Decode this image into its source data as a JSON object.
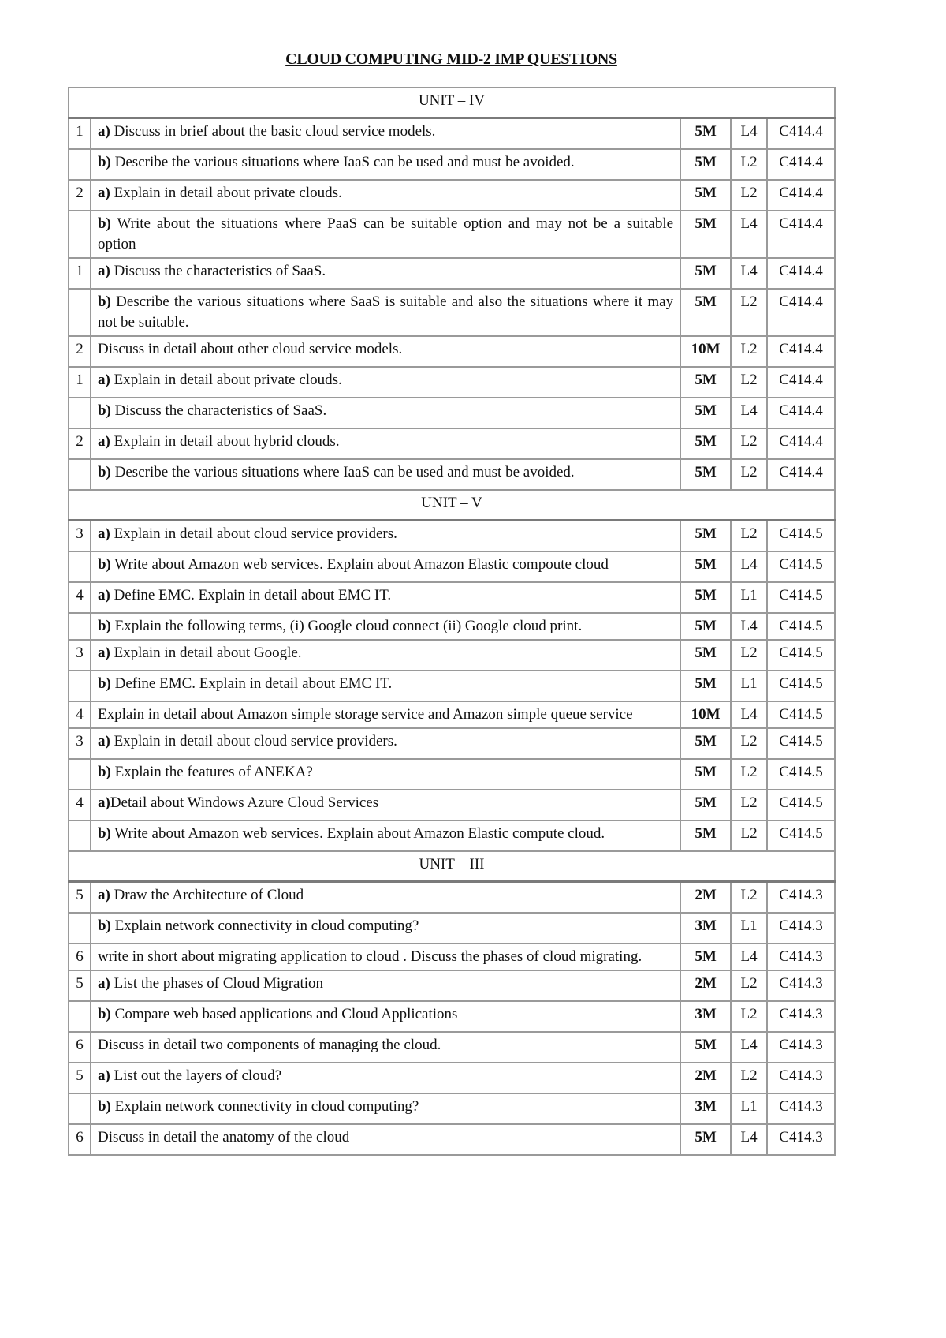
{
  "title": "CLOUD COMPUTING MID-2 IMP QUESTIONS",
  "sections": [
    {
      "unit": "UNIT – IV",
      "rows": [
        {
          "num": "1",
          "prefix": "a)",
          "text": " Discuss in brief about the basic cloud service models.",
          "marks": "5M",
          "level": "L4",
          "co": "C414.4"
        },
        {
          "num": "",
          "prefix": "b)",
          "text": " Describe the various situations where IaaS can be used and must be avoided.",
          "marks": "5M",
          "level": "L2",
          "co": "C414.4"
        },
        {
          "num": "2",
          "prefix": "a)",
          "text": " Explain in detail about private clouds.",
          "marks": "5M",
          "level": "L2",
          "co": "C414.4"
        },
        {
          "num": "",
          "prefix": "b)",
          "text": " Write about the situations where PaaS can be suitable option and may not be a suitable option",
          "marks": "5M",
          "level": "L4",
          "co": "C414.4"
        },
        {
          "num": "1",
          "prefix": "a)",
          "text": " Discuss the characteristics of SaaS.",
          "marks": "5M",
          "level": "L4",
          "co": "C414.4"
        },
        {
          "num": "",
          "prefix": "b)",
          "text": " Describe the various situations where SaaS is suitable and also the situations where it may not be suitable.",
          "marks": "5M",
          "level": "L2",
          "co": "C414.4"
        },
        {
          "num": "2",
          "prefix": "",
          "text": "Discuss in detail about other cloud service models.",
          "marks": "10M",
          "level": "L2",
          "co": "C414.4"
        },
        {
          "num": "1",
          "prefix": "a)",
          "text": " Explain in detail about private clouds.",
          "marks": "5M",
          "level": "L2",
          "co": "C414.4"
        },
        {
          "num": "",
          "prefix": "b)",
          "text": " Discuss the characteristics of SaaS.",
          "marks": "5M",
          "level": "L4",
          "co": "C414.4"
        },
        {
          "num": "2",
          "prefix": "a)",
          "text": " Explain in detail about hybrid clouds.",
          "marks": "5M",
          "level": "L2",
          "co": "C414.4"
        },
        {
          "num": "",
          "prefix": "b)",
          "text": " Describe the various situations where IaaS can be used and must be avoided.",
          "marks": "5M",
          "level": "L2",
          "co": "C414.4"
        }
      ]
    },
    {
      "unit": "UNIT – V",
      "rows": [
        {
          "num": "3",
          "prefix": "a)",
          "text": " Explain in detail about cloud service providers.",
          "marks": "5M",
          "level": "L2",
          "co": "C414.5"
        },
        {
          "num": "",
          "prefix": "b)",
          "text": " Write about Amazon web services. Explain about Amazon Elastic compoute cloud",
          "marks": "5M",
          "level": "L4",
          "co": "C414.5"
        },
        {
          "num": "4",
          "prefix": "a)",
          "text": " Define EMC. Explain in detail about EMC IT.",
          "marks": "5M",
          "level": "L1",
          "co": "C414.5"
        },
        {
          "num": "",
          "prefix": "b)",
          "text": " Explain the following terms, (i) Google cloud connect (ii) Google cloud print.",
          "marks": "5M",
          "level": "L4",
          "co": "C414.5"
        },
        {
          "num": "3",
          "prefix": "a)",
          "text": " Explain in detail about Google.",
          "marks": "5M",
          "level": "L2",
          "co": "C414.5"
        },
        {
          "num": "",
          "prefix": "b)",
          "text": " Define EMC. Explain in detail about EMC IT.",
          "marks": "5M",
          "level": "L1",
          "co": "C414.5"
        },
        {
          "num": "4",
          "prefix": "",
          "text": "Explain in detail about Amazon simple storage service and Amazon simple queue service",
          "marks": "10M",
          "level": "L4",
          "co": "C414.5"
        },
        {
          "num": "3",
          "prefix": "a)",
          "text": " Explain in detail about cloud service providers.",
          "marks": "5M",
          "level": "L2",
          "co": "C414.5"
        },
        {
          "num": "",
          "prefix": "b)",
          "text": " Explain the features of ANEKA?",
          "marks": "5M",
          "level": "L2",
          "co": "C414.5"
        },
        {
          "num": "4",
          "prefix": "a)",
          "text": "Detail about  Windows Azure Cloud Services",
          "marks": "5M",
          "level": "L2",
          "co": "C414.5"
        },
        {
          "num": "",
          "prefix": "b)",
          "text": " Write about Amazon web services. Explain about Amazon Elastic compute cloud.",
          "marks": "5M",
          "level": "L2",
          "co": "C414.5"
        }
      ]
    },
    {
      "unit": "UNIT – III",
      "rows": [
        {
          "num": "5",
          "prefix": "a)",
          "text": " Draw the Architecture of Cloud",
          "marks": "2M",
          "level": "L2",
          "co": "C414.3"
        },
        {
          "num": "",
          "prefix": "b)",
          "text": " Explain network connectivity in cloud computing?",
          "marks": "3M",
          "level": "L1",
          "co": "C414.3"
        },
        {
          "num": "6",
          "prefix": "",
          "text": "write in short about migrating application to cloud . Discuss the phases of cloud migrating.",
          "marks": "5M",
          "level": "L4",
          "co": "C414.3"
        },
        {
          "num": "5",
          "prefix": "a)",
          "text": " List the phases of Cloud Migration",
          "marks": "2M",
          "level": "L2",
          "co": "C414.3"
        },
        {
          "num": "",
          "prefix": "b)",
          "text": " Compare web based applications and Cloud Applications",
          "marks": "3M",
          "level": "L2",
          "co": "C414.3"
        },
        {
          "num": "6",
          "prefix": "",
          "text": "Discuss in detail two components of managing the cloud.",
          "marks": "5M",
          "level": "L4",
          "co": "C414.3"
        },
        {
          "num": "5",
          "prefix": "a)",
          "text": " List out the layers of cloud?",
          "marks": "2M",
          "level": "L2",
          "co": "C414.3"
        },
        {
          "num": "",
          "prefix": "b)",
          "text": " Explain network connectivity in cloud computing?",
          "marks": "3M",
          "level": "L1",
          "co": "C414.3"
        },
        {
          "num": "6",
          "prefix": "",
          "text": "Discuss in detail the anatomy of the cloud",
          "marks": "5M",
          "level": "L4",
          "co": "C414.3"
        }
      ]
    }
  ]
}
